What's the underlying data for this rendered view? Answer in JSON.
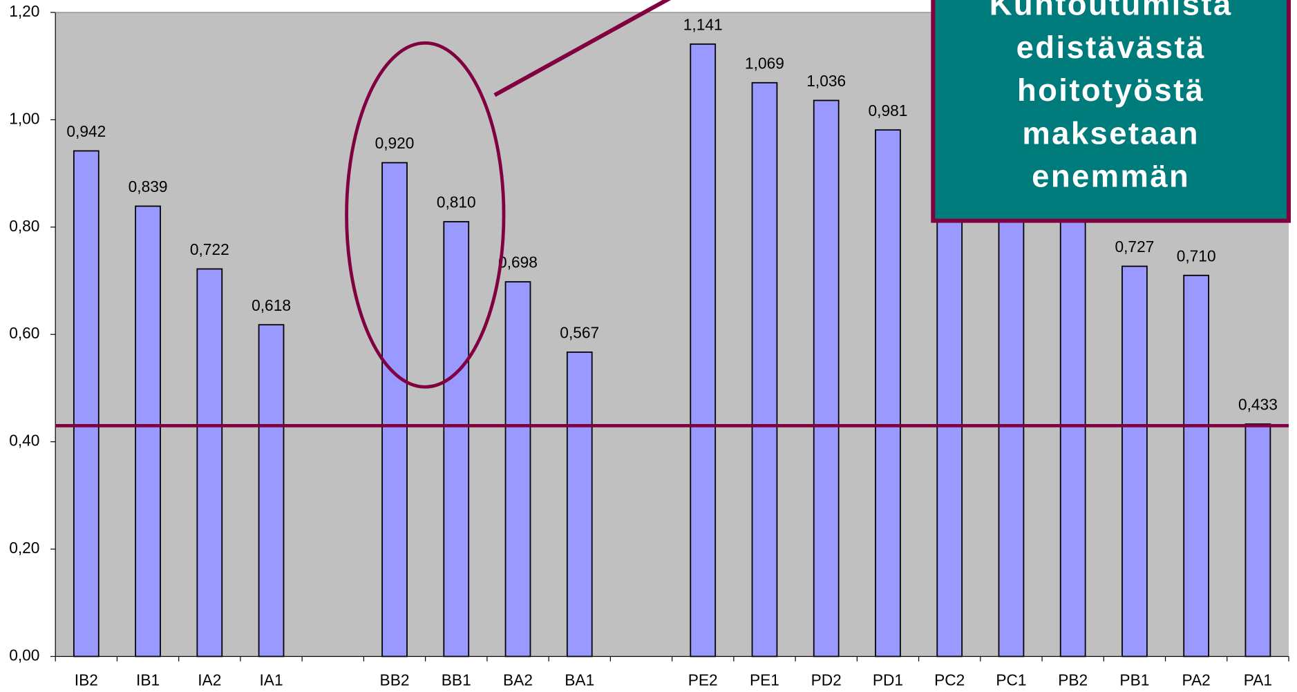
{
  "chart_data": {
    "type": "bar",
    "categories": [
      "IB2",
      "IB1",
      "IA2",
      "IA1",
      null,
      "BB2",
      "BB1",
      "BA2",
      "BA1",
      null,
      "PE2",
      "PE1",
      "PD2",
      "PD1",
      "PC2",
      "PC1",
      "PB2",
      "PB1",
      "PA2",
      "PA1"
    ],
    "values": [
      0.942,
      0.839,
      0.722,
      0.618,
      null,
      0.92,
      0.81,
      0.698,
      0.567,
      null,
      1.141,
      1.069,
      1.036,
      0.981,
      0.93,
      0.88,
      0.84,
      0.727,
      0.71,
      0.433
    ],
    "value_labels": [
      "0,942",
      "0,839",
      "0,722",
      "0,618",
      null,
      "0,920",
      "0,810",
      "0,698",
      "0,567",
      null,
      "1,141",
      "1,069",
      "1,036",
      "0,981",
      null,
      null,
      null,
      "0,727",
      "0,710",
      "0,433"
    ],
    "color": "#9999ff",
    "ylim": [
      0,
      1.2
    ],
    "yticks": [
      {
        "value": 0,
        "label": "0,00"
      },
      {
        "value": 0.2,
        "label": "0,20"
      },
      {
        "value": 0.4,
        "label": "0,40"
      },
      {
        "value": 0.6,
        "label": "0,60"
      },
      {
        "value": 0.8,
        "label": "0,80"
      },
      {
        "value": 1.0,
        "label": "1,00"
      },
      {
        "value": 1.2,
        "label": "1,20"
      }
    ],
    "grid": false,
    "reference_line": 0.43,
    "annotation": [
      "Kuntoutumista",
      "edistävästä",
      "hoitotyöstä",
      "maksetaan",
      "enemmän"
    ]
  }
}
